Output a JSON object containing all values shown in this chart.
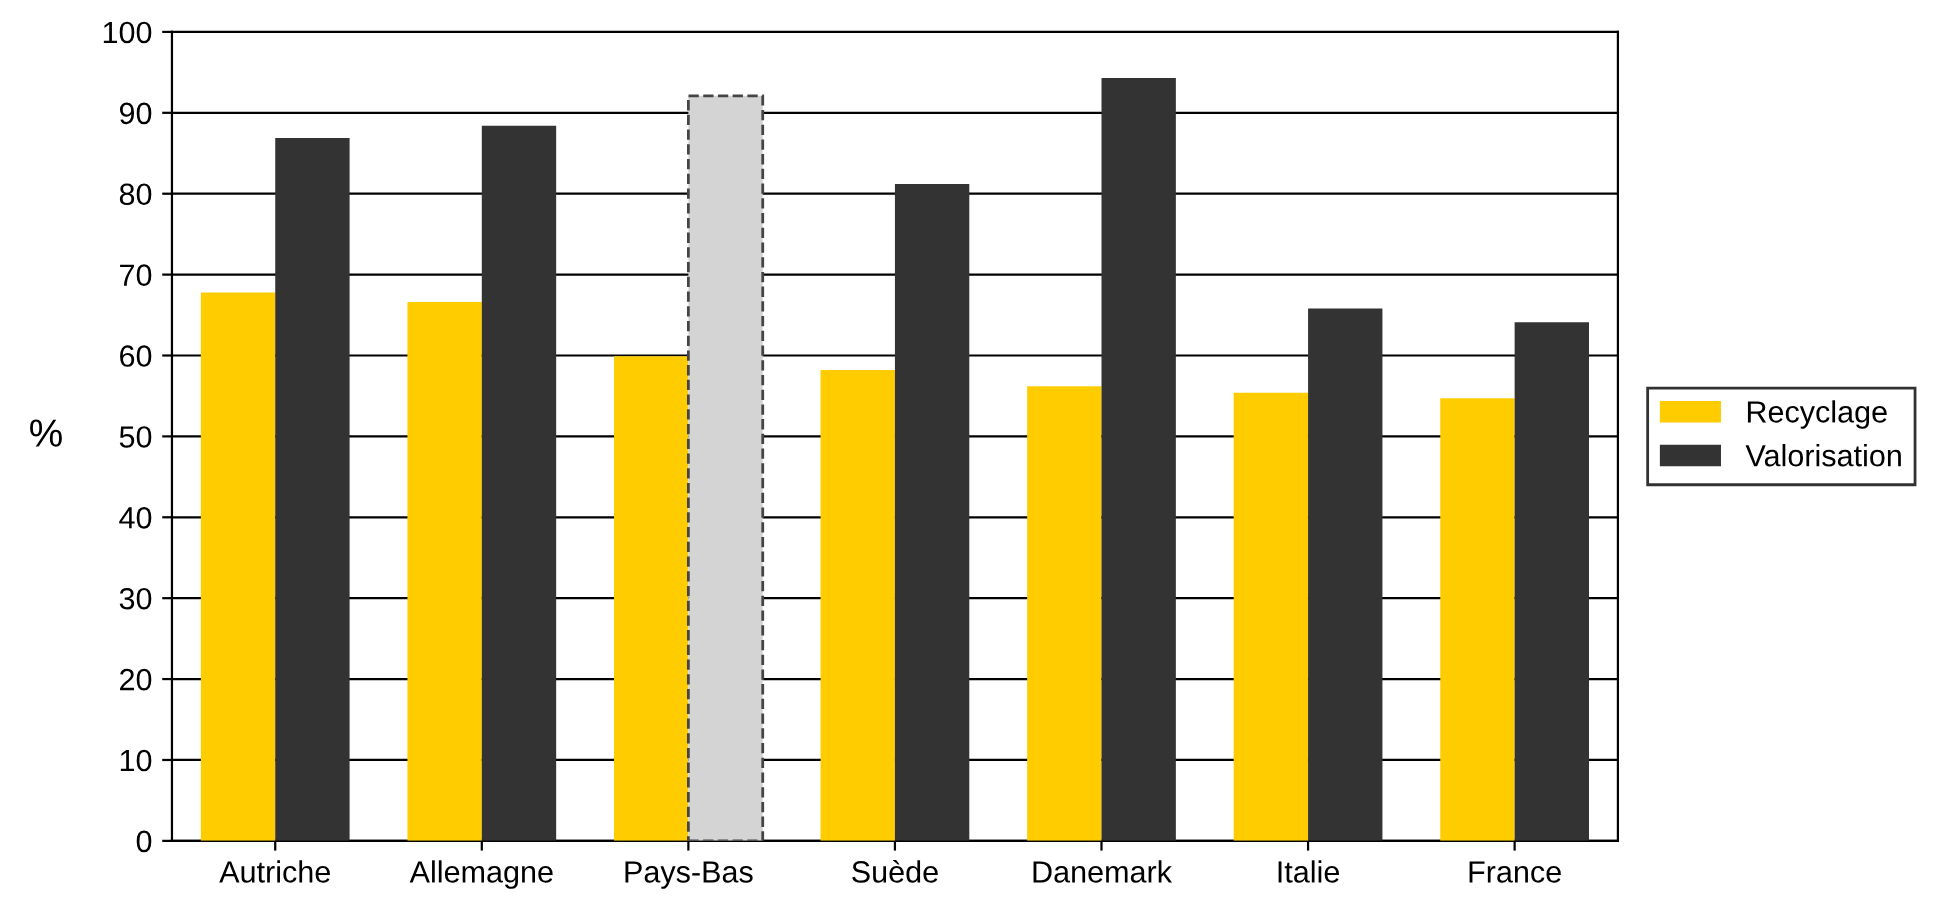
{
  "chart_data": {
    "type": "bar",
    "ylabel": "%",
    "categories": [
      "Autriche",
      "Allemagne",
      "Pays-Bas",
      "Suède",
      "Danemark",
      "Italie",
      "France"
    ],
    "series": [
      {
        "name": "Recyclage",
        "color": "#ffcc00",
        "values": [
          67.8,
          66.6,
          59.9,
          58.2,
          56.2,
          55.4,
          54.7
        ]
      },
      {
        "name": "Valorisation",
        "color": "#333333",
        "colors": [
          "#333333",
          "#333333",
          "#d4d4d4",
          "#333333",
          "#333333",
          "#333333",
          "#333333"
        ],
        "values": [
          86.9,
          88.4,
          92.1,
          81.2,
          94.3,
          65.8,
          64.1
        ]
      }
    ],
    "ylim": [
      0,
      100
    ],
    "yticks": [
      0,
      10,
      20,
      30,
      40,
      50,
      60,
      70,
      80,
      90,
      100
    ],
    "grid": "y",
    "legend": "right"
  }
}
